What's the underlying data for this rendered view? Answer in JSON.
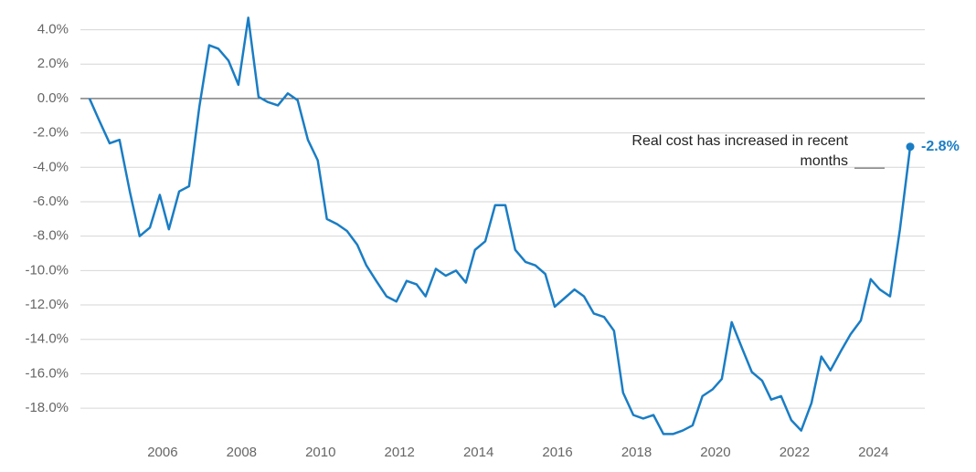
{
  "chart_data": {
    "type": "line",
    "annotation_lines": [
      "Real cost has increased in recent",
      "months"
    ],
    "x": [
      2004.15,
      2004.4,
      2004.66,
      2004.91,
      2005.17,
      2005.42,
      2005.68,
      2005.93,
      2006.16,
      2006.42,
      2006.67,
      2006.93,
      2007.18,
      2007.41,
      2007.67,
      2007.92,
      2008.17,
      2008.43,
      2008.66,
      2008.92,
      2009.17,
      2009.42,
      2009.68,
      2009.93,
      2010.16,
      2010.42,
      2010.67,
      2010.93,
      2011.16,
      2011.41,
      2011.67,
      2011.92,
      2012.18,
      2012.43,
      2012.66,
      2012.92,
      2013.17,
      2013.43,
      2013.68,
      2013.91,
      2014.17,
      2014.42,
      2014.68,
      2014.93,
      2015.19,
      2015.44,
      2015.69,
      2015.93,
      2016.18,
      2016.43,
      2016.67,
      2016.92,
      2017.18,
      2017.43,
      2017.66,
      2017.92,
      2018.17,
      2018.43,
      2018.68,
      2018.93,
      2019.17,
      2019.42,
      2019.67,
      2019.93,
      2020.16,
      2020.41,
      2020.67,
      2020.92,
      2021.18,
      2021.41,
      2021.66,
      2021.92,
      2022.17,
      2022.43,
      2022.68,
      2022.91,
      2023.17,
      2023.42,
      2023.68,
      2023.93,
      2024.16,
      2024.42,
      2024.67,
      2024.93
    ],
    "series": [
      {
        "color": "#1a7dc4",
        "values": [
          0,
          -1.3,
          -2.6,
          -2.4,
          -5.4,
          -8.0,
          -7.5,
          -5.6,
          -7.6,
          -5.4,
          -5.1,
          -0.5,
          3.1,
          2.9,
          2.2,
          0.8,
          4.7,
          0.1,
          -0.2,
          -0.4,
          0.3,
          -0.1,
          -2.4,
          -3.6,
          -7.0,
          -7.3,
          -7.7,
          -8.5,
          -9.7,
          -10.6,
          -11.5,
          -11.8,
          -10.6,
          -10.8,
          -11.5,
          -9.9,
          -10.3,
          -10.0,
          -10.7,
          -8.8,
          -8.3,
          -6.2,
          -6.2,
          -8.8,
          -9.5,
          -9.7,
          -10.2,
          -12.1,
          -11.6,
          -11.1,
          -11.5,
          -12.5,
          -12.7,
          -13.5,
          -17.1,
          -18.4,
          -18.6,
          -18.4,
          -19.5,
          -19.5,
          -19.3,
          -19.0,
          -17.3,
          -16.9,
          -16.3,
          -13.0,
          -14.5,
          -15.9,
          -16.4,
          -17.5,
          -17.3,
          -18.7,
          -19.3,
          -17.7,
          -15.0,
          -15.8,
          -14.7,
          -13.7,
          -12.9,
          -10.5,
          -11.1,
          -11.5,
          -7.6,
          -2.8
        ],
        "value_labels": [
          null,
          null,
          null,
          null,
          null,
          null,
          null,
          null,
          null,
          null,
          null,
          null,
          null,
          null,
          null,
          null,
          null,
          null,
          null,
          null,
          null,
          null,
          null,
          null,
          null,
          null,
          null,
          null,
          null,
          null,
          null,
          null,
          null,
          null,
          null,
          null,
          null,
          null,
          null,
          null,
          null,
          null,
          null,
          null,
          null,
          null,
          null,
          null,
          null,
          null,
          null,
          null,
          null,
          null,
          null,
          null,
          null,
          null,
          null,
          null,
          null,
          null,
          null,
          null,
          null,
          null,
          null,
          null,
          null,
          null,
          null,
          null,
          null,
          null,
          null,
          null,
          null,
          null,
          null,
          null,
          null,
          null,
          null,
          "-2.8%"
        ]
      }
    ],
    "xlim": [
      2003.92,
      2025.3
    ],
    "xticks": [
      2006,
      2008,
      2010,
      2012,
      2014,
      2016,
      2018,
      2020,
      2022,
      2024
    ],
    "ylim": [
      -19.8,
      4.8
    ],
    "yticks": [
      {
        "value": 4,
        "label": "4.0%"
      },
      {
        "value": 2,
        "label": "2.0%"
      },
      {
        "value": 0,
        "label": "0.0%"
      },
      {
        "value": -2,
        "label": "-2.0%"
      },
      {
        "value": -4,
        "label": "-4.0%"
      },
      {
        "value": -6,
        "label": "-6.0%"
      },
      {
        "value": -8,
        "label": "-8.0%"
      },
      {
        "value": -10,
        "label": "-10.0%"
      },
      {
        "value": -12,
        "label": "-12.0%"
      },
      {
        "value": -14,
        "label": "-14.0%"
      },
      {
        "value": -16,
        "label": "-16.0%"
      },
      {
        "value": -18,
        "label": "-18.0%"
      }
    ],
    "grid": true
  }
}
